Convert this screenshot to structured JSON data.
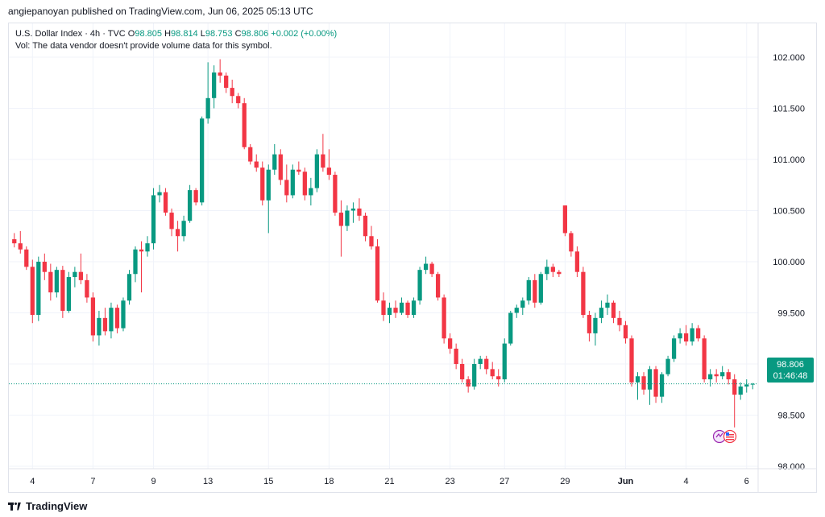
{
  "header": {
    "publisher": "angiepanoyan published on TradingView.com, Jun 06, 2025 05:13 UTC"
  },
  "legend": {
    "symbol": "U.S. Dollar Index · 4h · TVC",
    "o_label": "O",
    "o_value": "98.805",
    "h_label": "H",
    "h_value": "98.814",
    "l_label": "L",
    "l_value": "98.753",
    "c_label": "C",
    "c_value": "98.806",
    "change": "+0.002 (+0.00%)",
    "vol_note": "Vol: The data vendor doesn't provide volume data for this symbol."
  },
  "price_tag": {
    "price": "98.806",
    "countdown": "01:46:48"
  },
  "footer": {
    "brand": "TradingView"
  },
  "colors": {
    "up": "#089981",
    "down": "#F23645",
    "grid": "#F0F3FA",
    "axis_text": "#131722",
    "last_price_line": "#089981"
  },
  "chart_data": {
    "type": "candlestick",
    "timeframe": "4h",
    "y_ticks": [
      "102.000",
      "101.500",
      "101.000",
      "100.500",
      "100.000",
      "99.500",
      "99.000",
      "98.500",
      "98.000"
    ],
    "ylim": [
      98.0,
      102.0
    ],
    "x_ticks": [
      "4",
      "7",
      "9",
      "13",
      "15",
      "18",
      "21",
      "23",
      "27",
      "29",
      "Jun",
      "4",
      "6"
    ],
    "last_price": 98.806,
    "grid": true,
    "candles": [
      {
        "o": 100.22,
        "h": 100.28,
        "l": 100.14,
        "c": 100.18
      },
      {
        "o": 100.18,
        "h": 100.3,
        "l": 100.08,
        "c": 100.12
      },
      {
        "o": 100.12,
        "h": 100.15,
        "l": 99.92,
        "c": 99.95
      },
      {
        "o": 99.95,
        "h": 100.02,
        "l": 99.4,
        "c": 99.48
      },
      {
        "o": 99.48,
        "h": 100.05,
        "l": 99.42,
        "c": 100.0
      },
      {
        "o": 100.0,
        "h": 100.08,
        "l": 99.82,
        "c": 99.9
      },
      {
        "o": 99.9,
        "h": 99.98,
        "l": 99.62,
        "c": 99.7
      },
      {
        "o": 99.7,
        "h": 99.95,
        "l": 99.65,
        "c": 99.92
      },
      {
        "o": 99.92,
        "h": 99.96,
        "l": 99.45,
        "c": 99.52
      },
      {
        "o": 99.52,
        "h": 99.9,
        "l": 99.5,
        "c": 99.85
      },
      {
        "o": 99.85,
        "h": 99.95,
        "l": 99.75,
        "c": 99.9
      },
      {
        "o": 99.9,
        "h": 100.08,
        "l": 99.78,
        "c": 99.82
      },
      {
        "o": 99.82,
        "h": 99.88,
        "l": 99.6,
        "c": 99.65
      },
      {
        "o": 99.65,
        "h": 99.7,
        "l": 99.22,
        "c": 99.28
      },
      {
        "o": 99.28,
        "h": 99.52,
        "l": 99.18,
        "c": 99.45
      },
      {
        "o": 99.45,
        "h": 99.55,
        "l": 99.28,
        "c": 99.32
      },
      {
        "o": 99.32,
        "h": 99.6,
        "l": 99.25,
        "c": 99.55
      },
      {
        "o": 99.55,
        "h": 99.58,
        "l": 99.3,
        "c": 99.35
      },
      {
        "o": 99.35,
        "h": 99.65,
        "l": 99.32,
        "c": 99.62
      },
      {
        "o": 99.62,
        "h": 99.92,
        "l": 99.58,
        "c": 99.88
      },
      {
        "o": 99.88,
        "h": 100.15,
        "l": 99.8,
        "c": 100.12
      },
      {
        "o": 100.12,
        "h": 100.2,
        "l": 99.7,
        "c": 100.1
      },
      {
        "o": 100.1,
        "h": 100.25,
        "l": 100.05,
        "c": 100.18
      },
      {
        "o": 100.18,
        "h": 100.72,
        "l": 100.12,
        "c": 100.65
      },
      {
        "o": 100.65,
        "h": 100.75,
        "l": 100.58,
        "c": 100.68
      },
      {
        "o": 100.68,
        "h": 100.72,
        "l": 100.45,
        "c": 100.48
      },
      {
        "o": 100.48,
        "h": 100.52,
        "l": 100.25,
        "c": 100.32
      },
      {
        "o": 100.32,
        "h": 100.4,
        "l": 100.1,
        "c": 100.25
      },
      {
        "o": 100.25,
        "h": 100.45,
        "l": 100.2,
        "c": 100.4
      },
      {
        "o": 100.4,
        "h": 100.75,
        "l": 100.38,
        "c": 100.7
      },
      {
        "o": 100.7,
        "h": 100.72,
        "l": 100.55,
        "c": 100.58
      },
      {
        "o": 100.58,
        "h": 101.42,
        "l": 100.55,
        "c": 101.4
      },
      {
        "o": 101.4,
        "h": 101.95,
        "l": 101.35,
        "c": 101.6
      },
      {
        "o": 101.6,
        "h": 101.92,
        "l": 101.5,
        "c": 101.85
      },
      {
        "o": 101.85,
        "h": 101.98,
        "l": 101.75,
        "c": 101.82
      },
      {
        "o": 101.82,
        "h": 101.85,
        "l": 101.65,
        "c": 101.7
      },
      {
        "o": 101.7,
        "h": 101.78,
        "l": 101.55,
        "c": 101.62
      },
      {
        "o": 101.62,
        "h": 101.65,
        "l": 101.5,
        "c": 101.55
      },
      {
        "o": 101.55,
        "h": 101.6,
        "l": 101.1,
        "c": 101.12
      },
      {
        "o": 101.12,
        "h": 101.15,
        "l": 100.95,
        "c": 100.98
      },
      {
        "o": 100.98,
        "h": 101.05,
        "l": 100.88,
        "c": 100.92
      },
      {
        "o": 100.92,
        "h": 100.98,
        "l": 100.55,
        "c": 100.6
      },
      {
        "o": 100.6,
        "h": 100.95,
        "l": 100.28,
        "c": 100.9
      },
      {
        "o": 100.9,
        "h": 101.15,
        "l": 100.85,
        "c": 101.05
      },
      {
        "o": 101.05,
        "h": 101.1,
        "l": 100.75,
        "c": 100.8
      },
      {
        "o": 100.8,
        "h": 100.95,
        "l": 100.58,
        "c": 100.65
      },
      {
        "o": 100.65,
        "h": 100.95,
        "l": 100.62,
        "c": 100.9
      },
      {
        "o": 100.9,
        "h": 100.98,
        "l": 100.85,
        "c": 100.88
      },
      {
        "o": 100.88,
        "h": 100.92,
        "l": 100.6,
        "c": 100.65
      },
      {
        "o": 100.65,
        "h": 100.82,
        "l": 100.55,
        "c": 100.72
      },
      {
        "o": 100.72,
        "h": 101.1,
        "l": 100.68,
        "c": 101.05
      },
      {
        "o": 101.05,
        "h": 101.25,
        "l": 100.88,
        "c": 100.92
      },
      {
        "o": 100.92,
        "h": 101.1,
        "l": 100.8,
        "c": 100.85
      },
      {
        "o": 100.85,
        "h": 100.88,
        "l": 100.45,
        "c": 100.48
      },
      {
        "o": 100.48,
        "h": 100.6,
        "l": 100.05,
        "c": 100.35
      },
      {
        "o": 100.35,
        "h": 100.55,
        "l": 100.3,
        "c": 100.5
      },
      {
        "o": 100.5,
        "h": 100.58,
        "l": 100.38,
        "c": 100.52
      },
      {
        "o": 100.52,
        "h": 100.62,
        "l": 100.4,
        "c": 100.45
      },
      {
        "o": 100.45,
        "h": 100.48,
        "l": 100.2,
        "c": 100.25
      },
      {
        "o": 100.25,
        "h": 100.35,
        "l": 100.12,
        "c": 100.15
      },
      {
        "o": 100.15,
        "h": 100.22,
        "l": 99.6,
        "c": 99.62
      },
      {
        "o": 99.62,
        "h": 99.7,
        "l": 99.42,
        "c": 99.48
      },
      {
        "o": 99.48,
        "h": 99.6,
        "l": 99.4,
        "c": 99.55
      },
      {
        "o": 99.55,
        "h": 99.62,
        "l": 99.45,
        "c": 99.5
      },
      {
        "o": 99.5,
        "h": 99.65,
        "l": 99.48,
        "c": 99.6
      },
      {
        "o": 99.6,
        "h": 99.62,
        "l": 99.45,
        "c": 99.48
      },
      {
        "o": 99.48,
        "h": 99.65,
        "l": 99.45,
        "c": 99.62
      },
      {
        "o": 99.62,
        "h": 99.95,
        "l": 99.58,
        "c": 99.92
      },
      {
        "o": 99.92,
        "h": 100.05,
        "l": 99.88,
        "c": 99.98
      },
      {
        "o": 99.98,
        "h": 100.0,
        "l": 99.85,
        "c": 99.88
      },
      {
        "o": 99.88,
        "h": 99.9,
        "l": 99.62,
        "c": 99.65
      },
      {
        "o": 99.65,
        "h": 99.68,
        "l": 99.2,
        "c": 99.25
      },
      {
        "o": 99.25,
        "h": 99.3,
        "l": 99.1,
        "c": 99.15
      },
      {
        "o": 99.15,
        "h": 99.2,
        "l": 98.95,
        "c": 99.0
      },
      {
        "o": 99.0,
        "h": 99.05,
        "l": 98.82,
        "c": 98.85
      },
      {
        "o": 98.85,
        "h": 98.88,
        "l": 98.72,
        "c": 98.78
      },
      {
        "o": 98.78,
        "h": 99.05,
        "l": 98.75,
        "c": 99.0
      },
      {
        "o": 99.0,
        "h": 99.08,
        "l": 98.95,
        "c": 99.05
      },
      {
        "o": 99.05,
        "h": 99.08,
        "l": 98.9,
        "c": 98.95
      },
      {
        "o": 98.95,
        "h": 99.02,
        "l": 98.85,
        "c": 98.88
      },
      {
        "o": 98.88,
        "h": 98.95,
        "l": 98.78,
        "c": 98.85
      },
      {
        "o": 98.85,
        "h": 99.25,
        "l": 98.82,
        "c": 99.2
      },
      {
        "o": 99.2,
        "h": 99.52,
        "l": 99.18,
        "c": 99.5
      },
      {
        "o": 99.5,
        "h": 99.58,
        "l": 99.45,
        "c": 99.55
      },
      {
        "o": 99.55,
        "h": 99.65,
        "l": 99.48,
        "c": 99.62
      },
      {
        "o": 99.62,
        "h": 99.85,
        "l": 99.58,
        "c": 99.82
      },
      {
        "o": 99.82,
        "h": 99.88,
        "l": 99.55,
        "c": 99.6
      },
      {
        "o": 99.6,
        "h": 99.9,
        "l": 99.58,
        "c": 99.88
      },
      {
        "o": 99.88,
        "h": 100.02,
        "l": 99.82,
        "c": 99.95
      },
      {
        "o": 99.95,
        "h": 99.98,
        "l": 99.85,
        "c": 99.9
      },
      {
        "o": 99.9,
        "h": 99.92,
        "l": 99.85,
        "c": 99.88
      },
      {
        "o": 100.55,
        "h": 100.55,
        "l": 100.25,
        "c": 100.28
      },
      {
        "o": 100.28,
        "h": 100.3,
        "l": 100.05,
        "c": 100.1
      },
      {
        "o": 100.1,
        "h": 100.15,
        "l": 99.85,
        "c": 99.9
      },
      {
        "o": 99.9,
        "h": 99.95,
        "l": 99.45,
        "c": 99.48
      },
      {
        "o": 99.48,
        "h": 99.52,
        "l": 99.22,
        "c": 99.3
      },
      {
        "o": 99.3,
        "h": 99.5,
        "l": 99.18,
        "c": 99.45
      },
      {
        "o": 99.45,
        "h": 99.62,
        "l": 99.4,
        "c": 99.55
      },
      {
        "o": 99.55,
        "h": 99.68,
        "l": 99.48,
        "c": 99.6
      },
      {
        "o": 99.6,
        "h": 99.62,
        "l": 99.4,
        "c": 99.45
      },
      {
        "o": 99.45,
        "h": 99.52,
        "l": 99.32,
        "c": 99.38
      },
      {
        "o": 99.38,
        "h": 99.42,
        "l": 99.2,
        "c": 99.25
      },
      {
        "o": 99.25,
        "h": 99.28,
        "l": 98.78,
        "c": 98.82
      },
      {
        "o": 98.82,
        "h": 98.92,
        "l": 98.65,
        "c": 98.88
      },
      {
        "o": 98.88,
        "h": 98.92,
        "l": 98.7,
        "c": 98.75
      },
      {
        "o": 98.75,
        "h": 98.98,
        "l": 98.6,
        "c": 98.95
      },
      {
        "o": 98.95,
        "h": 98.98,
        "l": 98.62,
        "c": 98.68
      },
      {
        "o": 98.68,
        "h": 98.92,
        "l": 98.62,
        "c": 98.9
      },
      {
        "o": 98.9,
        "h": 99.08,
        "l": 98.88,
        "c": 99.05
      },
      {
        "o": 99.05,
        "h": 99.28,
        "l": 99.02,
        "c": 99.25
      },
      {
        "o": 99.25,
        "h": 99.35,
        "l": 99.2,
        "c": 99.3
      },
      {
        "o": 99.3,
        "h": 99.38,
        "l": 99.18,
        "c": 99.22
      },
      {
        "o": 99.22,
        "h": 99.4,
        "l": 99.18,
        "c": 99.35
      },
      {
        "o": 99.35,
        "h": 99.38,
        "l": 99.22,
        "c": 99.25
      },
      {
        "o": 99.25,
        "h": 99.28,
        "l": 98.82,
        "c": 98.85
      },
      {
        "o": 98.85,
        "h": 98.95,
        "l": 98.78,
        "c": 98.9
      },
      {
        "o": 98.9,
        "h": 98.95,
        "l": 98.82,
        "c": 98.88
      },
      {
        "o": 98.88,
        "h": 98.98,
        "l": 98.85,
        "c": 98.92
      },
      {
        "o": 98.92,
        "h": 98.95,
        "l": 98.8,
        "c": 98.85
      },
      {
        "o": 98.85,
        "h": 98.9,
        "l": 98.38,
        "c": 98.7
      },
      {
        "o": 98.7,
        "h": 98.82,
        "l": 98.65,
        "c": 98.78
      },
      {
        "o": 98.78,
        "h": 98.85,
        "l": 98.72,
        "c": 98.8
      },
      {
        "o": 98.805,
        "h": 98.814,
        "l": 98.753,
        "c": 98.806
      }
    ]
  }
}
